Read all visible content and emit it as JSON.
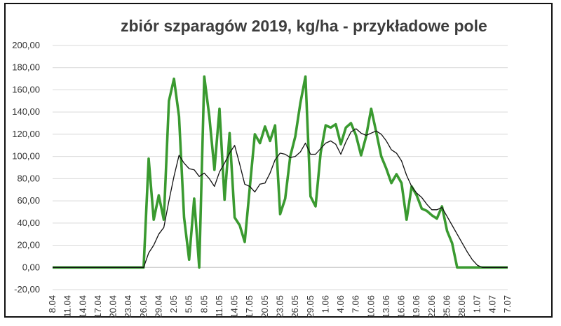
{
  "chart_data": {
    "type": "line",
    "title": "zbiór szparagów 2019, kg/ha - przykładowe pole",
    "xlabel": "",
    "ylabel": "",
    "ylim": [
      -20,
      200
    ],
    "y_ticks": [
      "-20,00",
      "0,00",
      "20,00",
      "40,00",
      "60,00",
      "80,00",
      "100,00",
      "120,00",
      "140,00",
      "160,00",
      "180,00",
      "200,00"
    ],
    "x_ticks": [
      "8.04",
      "11.04",
      "14.04",
      "17.04",
      "20.04",
      "23.04",
      "26.04",
      "29.04",
      "2.05",
      "5.05",
      "8.05",
      "11.05",
      "14.05",
      "17.05",
      "20.05",
      "23.05",
      "26.05",
      "29.05",
      "1.06",
      "4.06",
      "7.06",
      "10.06",
      "13.06",
      "16.06",
      "19.06",
      "22.06",
      "25.06",
      "28.06",
      "1.07",
      "4.07",
      "7.07"
    ],
    "grid": true,
    "legend": "none",
    "colors": {
      "series_main": "#3a9a30",
      "series_trend": "#111111",
      "grid": "#d9d9d9"
    },
    "series": [
      {
        "color": "#3a9a30",
        "points": [
          [
            "8.04",
            0
          ],
          [
            "11.04",
            0
          ],
          [
            "14.04",
            0
          ],
          [
            "17.04",
            0
          ],
          [
            "20.04",
            0
          ],
          [
            "23.04",
            0
          ],
          [
            "26.04",
            0
          ],
          [
            "27.04",
            98
          ],
          [
            "28.04",
            43
          ],
          [
            "29.04",
            65
          ],
          [
            "30.04",
            43
          ],
          [
            "1.05",
            150
          ],
          [
            "2.05",
            170
          ],
          [
            "3.05",
            136
          ],
          [
            "4.05",
            45
          ],
          [
            "5.05",
            7
          ],
          [
            "6.05",
            62
          ],
          [
            "7.05",
            0
          ],
          [
            "8.05",
            172
          ],
          [
            "9.05",
            136
          ],
          [
            "10.05",
            88
          ],
          [
            "11.05",
            143
          ],
          [
            "12.05",
            61
          ],
          [
            "13.05",
            121
          ],
          [
            "14.05",
            45
          ],
          [
            "15.05",
            38
          ],
          [
            "16.05",
            23
          ],
          [
            "17.05",
            72
          ],
          [
            "18.05",
            120
          ],
          [
            "19.05",
            112
          ],
          [
            "20.05",
            127
          ],
          [
            "21.05",
            114
          ],
          [
            "22.05",
            128
          ],
          [
            "23.05",
            48
          ],
          [
            "24.05",
            62
          ],
          [
            "25.05",
            100
          ],
          [
            "26.05",
            118
          ],
          [
            "27.05",
            148
          ],
          [
            "28.05",
            172
          ],
          [
            "29.05",
            64
          ],
          [
            "30.05",
            55
          ],
          [
            "31.05",
            103
          ],
          [
            "1.06",
            128
          ],
          [
            "2.06",
            126
          ],
          [
            "3.06",
            129
          ],
          [
            "4.06",
            111
          ],
          [
            "5.06",
            126
          ],
          [
            "6.06",
            130
          ],
          [
            "7.06",
            119
          ],
          [
            "8.06",
            101
          ],
          [
            "9.06",
            118
          ],
          [
            "10.06",
            143
          ],
          [
            "11.06",
            122
          ],
          [
            "12.06",
            100
          ],
          [
            "13.06",
            89
          ],
          [
            "14.06",
            76
          ],
          [
            "15.06",
            84
          ],
          [
            "16.06",
            76
          ],
          [
            "17.06",
            43
          ],
          [
            "18.06",
            73
          ],
          [
            "19.06",
            65
          ],
          [
            "20.06",
            53
          ],
          [
            "21.06",
            51
          ],
          [
            "22.06",
            47
          ],
          [
            "23.06",
            44
          ],
          [
            "24.06",
            55
          ],
          [
            "25.06",
            33
          ],
          [
            "26.06",
            22
          ],
          [
            "27.06",
            0
          ],
          [
            "28.06",
            0
          ],
          [
            "1.07",
            0
          ],
          [
            "4.07",
            0
          ],
          [
            "7.07",
            0
          ]
        ]
      },
      {
        "color": "#111111",
        "points": [
          [
            "8.04",
            0
          ],
          [
            "11.04",
            0
          ],
          [
            "14.04",
            0
          ],
          [
            "17.04",
            0
          ],
          [
            "20.04",
            0
          ],
          [
            "23.04",
            0
          ],
          [
            "26.04",
            0
          ],
          [
            "27.04",
            13
          ],
          [
            "28.04",
            20
          ],
          [
            "29.04",
            30
          ],
          [
            "30.04",
            36
          ],
          [
            "1.05",
            60
          ],
          [
            "2.05",
            82
          ],
          [
            "3.05",
            101
          ],
          [
            "4.05",
            94
          ],
          [
            "5.05",
            89
          ],
          [
            "6.05",
            88
          ],
          [
            "7.05",
            82
          ],
          [
            "8.05",
            85
          ],
          [
            "9.05",
            80
          ],
          [
            "10.05",
            73
          ],
          [
            "11.05",
            86
          ],
          [
            "12.05",
            94
          ],
          [
            "13.05",
            103
          ],
          [
            "14.05",
            110
          ],
          [
            "15.05",
            93
          ],
          [
            "16.05",
            75
          ],
          [
            "17.05",
            73
          ],
          [
            "18.05",
            68
          ],
          [
            "19.05",
            75
          ],
          [
            "20.05",
            76
          ],
          [
            "21.05",
            85
          ],
          [
            "22.05",
            97
          ],
          [
            "23.05",
            103
          ],
          [
            "24.05",
            102
          ],
          [
            "25.05",
            99
          ],
          [
            "26.05",
            100
          ],
          [
            "27.05",
            104
          ],
          [
            "28.05",
            112
          ],
          [
            "29.05",
            102
          ],
          [
            "30.05",
            102
          ],
          [
            "31.05",
            107
          ],
          [
            "1.06",
            112
          ],
          [
            "2.06",
            114
          ],
          [
            "3.06",
            111
          ],
          [
            "4.06",
            102
          ],
          [
            "5.06",
            113
          ],
          [
            "6.06",
            122
          ],
          [
            "7.06",
            125
          ],
          [
            "8.06",
            121
          ],
          [
            "9.06",
            119
          ],
          [
            "10.06",
            121
          ],
          [
            "11.06",
            123
          ],
          [
            "12.06",
            120
          ],
          [
            "13.06",
            114
          ],
          [
            "14.06",
            106
          ],
          [
            "15.06",
            103
          ],
          [
            "16.06",
            96
          ],
          [
            "17.06",
            83
          ],
          [
            "18.06",
            73
          ],
          [
            "19.06",
            67
          ],
          [
            "20.06",
            63
          ],
          [
            "21.06",
            57
          ],
          [
            "22.06",
            52
          ],
          [
            "23.06",
            52
          ],
          [
            "24.06",
            54
          ],
          [
            "25.06",
            46
          ],
          [
            "26.06",
            38
          ],
          [
            "27.06",
            30
          ],
          [
            "28.06",
            22
          ],
          [
            "29.06",
            14
          ],
          [
            "30.06",
            7
          ],
          [
            "1.07",
            2
          ],
          [
            "2.07",
            0
          ],
          [
            "4.07",
            0
          ],
          [
            "7.07",
            0
          ]
        ]
      }
    ]
  }
}
